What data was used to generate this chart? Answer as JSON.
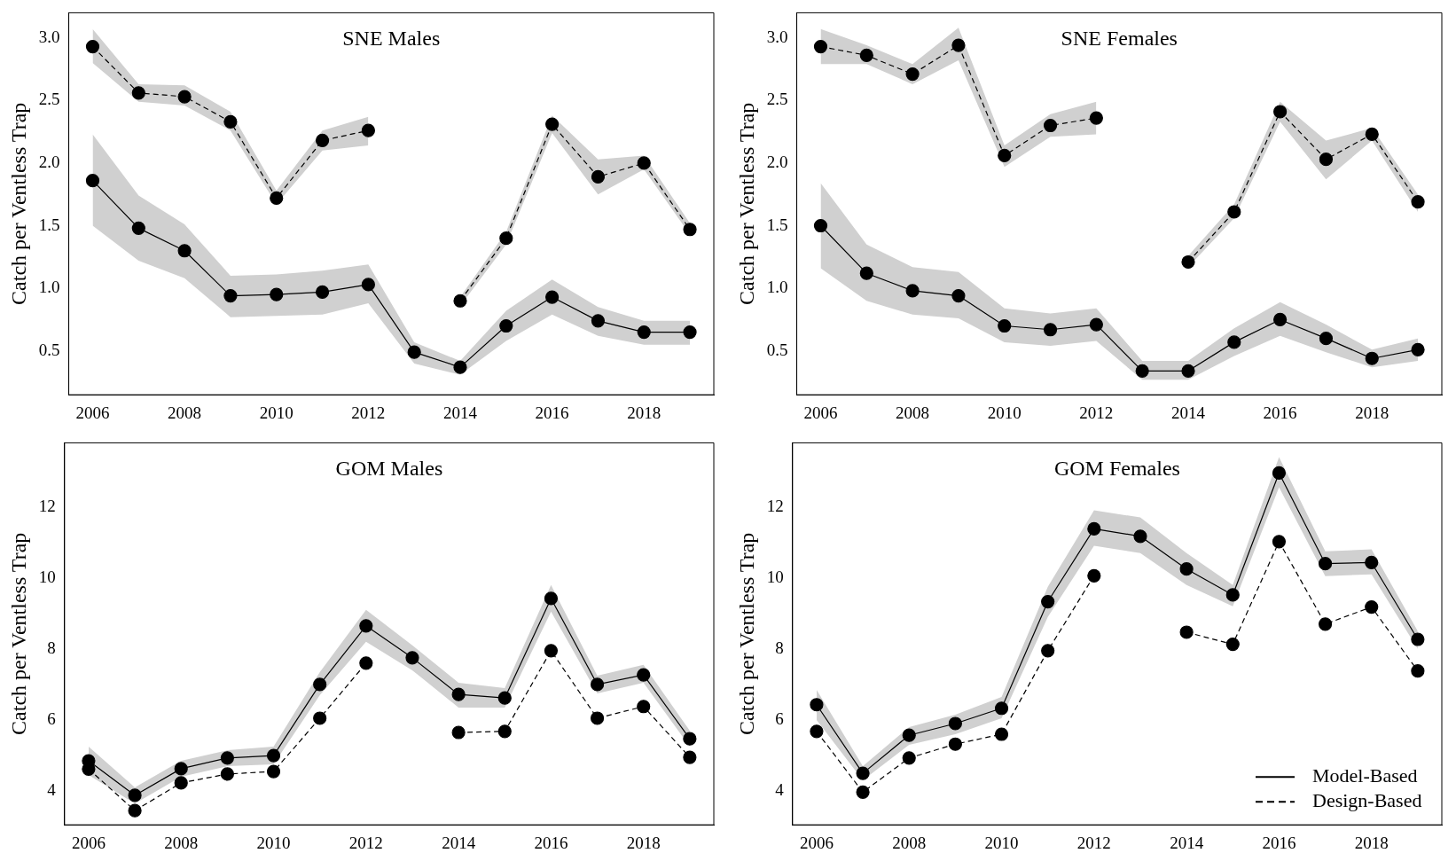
{
  "chart_data": [
    {
      "type": "line",
      "title": "SNE Males",
      "ylabel": "Catch per Ventless Trap",
      "x": [
        2006,
        2007,
        2008,
        2009,
        2010,
        2011,
        2012,
        2013,
        2014,
        2015,
        2016,
        2017,
        2018,
        2019
      ],
      "xlim": [
        2005.48,
        2019.52
      ],
      "xticks": [
        2006,
        2008,
        2010,
        2012,
        2014,
        2016,
        2018
      ],
      "ylim": [
        0.15,
        3.2
      ],
      "yticks": [
        0.5,
        {
          "value": 1,
          "label": "1.0"
        },
        1.5,
        {
          "value": 2,
          "label": "2.0"
        },
        2.5,
        {
          "value": 3,
          "label": "3.0"
        }
      ],
      "grid": false,
      "legend": false,
      "marker": "circle",
      "series": [
        {
          "color": "#000000",
          "line_style": "solid",
          "values": [
            1.86,
            1.48,
            1.3,
            0.94,
            0.95,
            0.97,
            1.03,
            0.49,
            0.37,
            0.7,
            0.93,
            0.74,
            0.65,
            0.65
          ],
          "lower": [
            1.5,
            1.22,
            1.08,
            0.77,
            0.78,
            0.79,
            0.88,
            0.4,
            0.31,
            0.58,
            0.79,
            0.62,
            0.55,
            0.55
          ],
          "upper": [
            2.23,
            1.74,
            1.51,
            1.1,
            1.11,
            1.14,
            1.19,
            0.57,
            0.42,
            0.82,
            1.07,
            0.85,
            0.74,
            0.74
          ]
        },
        {
          "color": "#000000",
          "line_style": "dashed",
          "values": [
            2.93,
            2.56,
            2.53,
            2.33,
            1.72,
            2.18,
            2.26,
            null,
            0.9,
            1.4,
            2.31,
            1.89,
            2.0,
            1.47
          ],
          "lower": [
            2.8,
            2.49,
            2.46,
            2.26,
            1.67,
            2.1,
            2.14,
            null,
            0.86,
            1.35,
            2.24,
            1.75,
            1.95,
            1.43
          ],
          "upper": [
            3.07,
            2.63,
            2.62,
            2.41,
            1.78,
            2.26,
            2.37,
            null,
            0.93,
            1.45,
            2.38,
            2.03,
            2.06,
            1.52
          ]
        }
      ]
    },
    {
      "type": "line",
      "title": "SNE Females",
      "ylabel": "Catch per Ventless Trap",
      "x": [
        2006,
        2007,
        2008,
        2009,
        2010,
        2011,
        2012,
        2013,
        2014,
        2015,
        2016,
        2017,
        2018,
        2019
      ],
      "xlim": [
        2005.48,
        2019.52
      ],
      "xticks": [
        2006,
        2008,
        2010,
        2012,
        2014,
        2016,
        2018
      ],
      "ylim": [
        0.15,
        3.2
      ],
      "yticks": [
        0.5,
        {
          "value": 1,
          "label": "1.0"
        },
        1.5,
        {
          "value": 2,
          "label": "2.0"
        },
        2.5,
        {
          "value": 3,
          "label": "3.0"
        }
      ],
      "grid": false,
      "legend": false,
      "marker": "circle",
      "series": [
        {
          "color": "#000000",
          "line_style": "solid",
          "values": [
            1.5,
            1.12,
            0.98,
            0.94,
            0.7,
            0.67,
            0.71,
            0.34,
            0.34,
            0.57,
            0.75,
            0.6,
            0.44,
            0.51
          ],
          "lower": [
            1.16,
            0.9,
            0.79,
            0.76,
            0.57,
            0.54,
            0.58,
            0.27,
            0.27,
            0.46,
            0.62,
            0.49,
            0.37,
            0.42
          ],
          "upper": [
            1.84,
            1.35,
            1.17,
            1.13,
            0.84,
            0.8,
            0.84,
            0.42,
            0.42,
            0.68,
            0.89,
            0.71,
            0.51,
            0.6
          ]
        },
        {
          "color": "#000000",
          "line_style": "dashed",
          "values": [
            2.93,
            2.86,
            2.71,
            2.94,
            2.06,
            2.3,
            2.36,
            null,
            1.21,
            1.61,
            2.41,
            2.03,
            2.23,
            1.69
          ],
          "lower": [
            2.79,
            2.79,
            2.63,
            2.82,
            1.97,
            2.21,
            2.23,
            null,
            1.17,
            1.56,
            2.33,
            1.87,
            2.18,
            1.61
          ],
          "upper": [
            3.07,
            2.94,
            2.79,
            3.08,
            2.14,
            2.39,
            2.49,
            null,
            1.26,
            1.67,
            2.49,
            2.18,
            2.28,
            1.75
          ]
        }
      ]
    },
    {
      "type": "line",
      "title": "GOM Males",
      "ylabel": "Catch per Ventless Trap",
      "x": [
        2006,
        2007,
        2008,
        2009,
        2010,
        2011,
        2012,
        2013,
        2014,
        2015,
        2016,
        2017,
        2018,
        2019
      ],
      "xlim": [
        2005.48,
        2019.52
      ],
      "xticks": [
        2006,
        2008,
        2010,
        2012,
        2014,
        2016,
        2018
      ],
      "ylim": [
        3.05,
        13.8
      ],
      "yticks": [
        4,
        6,
        8,
        10,
        12
      ],
      "grid": false,
      "legend": false,
      "marker": "circle",
      "series": [
        {
          "color": "#000000",
          "line_style": "solid",
          "values": [
            4.85,
            3.88,
            4.63,
            4.93,
            5.0,
            7.0,
            8.65,
            7.75,
            6.72,
            6.62,
            9.42,
            7.0,
            7.27,
            5.47
          ],
          "lower": [
            4.45,
            3.65,
            4.4,
            4.7,
            4.75,
            6.7,
            8.2,
            7.4,
            6.35,
            6.35,
            9.05,
            6.75,
            7.05,
            5.25
          ],
          "upper": [
            5.25,
            4.1,
            4.85,
            5.15,
            5.25,
            7.35,
            9.1,
            8.1,
            7.05,
            6.9,
            9.8,
            7.25,
            7.55,
            5.7
          ]
        },
        {
          "color": "#000000",
          "line_style": "dashed",
          "values": [
            4.62,
            3.45,
            4.23,
            4.48,
            4.55,
            6.05,
            7.6,
            null,
            5.65,
            5.68,
            7.95,
            6.05,
            6.38,
            4.95
          ]
        }
      ]
    },
    {
      "type": "line",
      "title": "GOM Females",
      "ylabel": "Catch per Ventless Trap",
      "x": [
        2006,
        2007,
        2008,
        2009,
        2010,
        2011,
        2012,
        2013,
        2014,
        2015,
        2016,
        2017,
        2018,
        2019
      ],
      "xlim": [
        2005.48,
        2019.52
      ],
      "xticks": [
        2006,
        2008,
        2010,
        2012,
        2014,
        2016,
        2018
      ],
      "ylim": [
        3.05,
        13.8
      ],
      "yticks": [
        4,
        6,
        8,
        10,
        12
      ],
      "grid": false,
      "legend": "bottom right",
      "marker": "circle",
      "series": [
        {
          "name": "Model-Based",
          "color": "#000000",
          "line_style": "solid",
          "values": [
            6.43,
            4.5,
            5.57,
            5.9,
            6.33,
            9.33,
            11.38,
            11.17,
            10.25,
            9.52,
            12.95,
            10.4,
            10.43,
            8.27
          ],
          "lower": [
            6.0,
            4.3,
            5.3,
            5.6,
            6.05,
            8.9,
            10.9,
            10.7,
            9.8,
            9.2,
            12.55,
            10.05,
            10.1,
            8.0
          ],
          "upper": [
            6.85,
            4.7,
            5.8,
            6.15,
            6.65,
            9.75,
            11.9,
            11.7,
            10.7,
            9.8,
            13.4,
            10.75,
            10.8,
            8.5
          ]
        },
        {
          "name": "Design-Based",
          "color": "#000000",
          "line_style": "dashed",
          "values": [
            5.68,
            3.97,
            4.93,
            5.32,
            5.6,
            7.95,
            10.06,
            null,
            8.47,
            8.13,
            11.02,
            8.7,
            9.18,
            7.38
          ]
        }
      ]
    }
  ]
}
